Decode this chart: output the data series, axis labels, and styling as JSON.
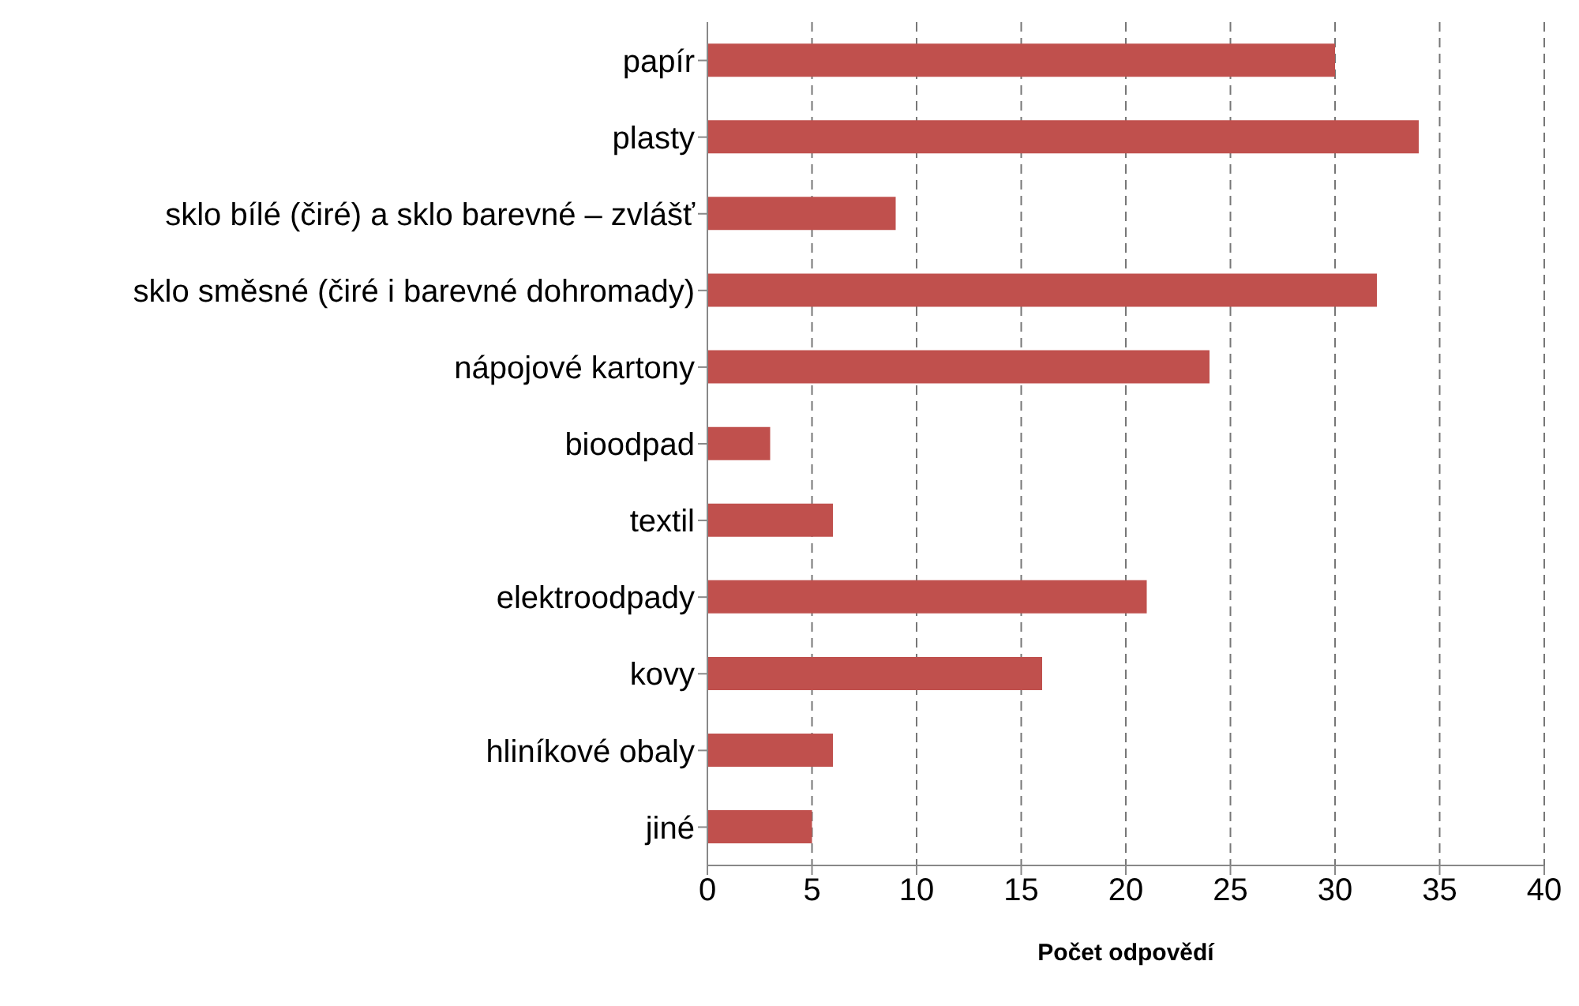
{
  "chart_data": {
    "type": "bar",
    "orientation": "horizontal",
    "xlabel": "Počet odpovědí",
    "categories": [
      "papír",
      "plasty",
      "sklo bílé (čiré) a sklo barevné – zvlášť",
      "sklo směsné (čiré i barevné dohromady)",
      "nápojové kartony",
      "bioodpad",
      "textil",
      "elektroodpady",
      "kovy",
      "hliníkové obaly",
      "jiné"
    ],
    "values": [
      30,
      34,
      9,
      32,
      24,
      3,
      6,
      21,
      16,
      6,
      5
    ],
    "color": "#c0504d",
    "xlim": [
      0,
      40
    ],
    "xticks": [
      0,
      5,
      10,
      15,
      20,
      25,
      30,
      35,
      40
    ],
    "grid": "x"
  }
}
